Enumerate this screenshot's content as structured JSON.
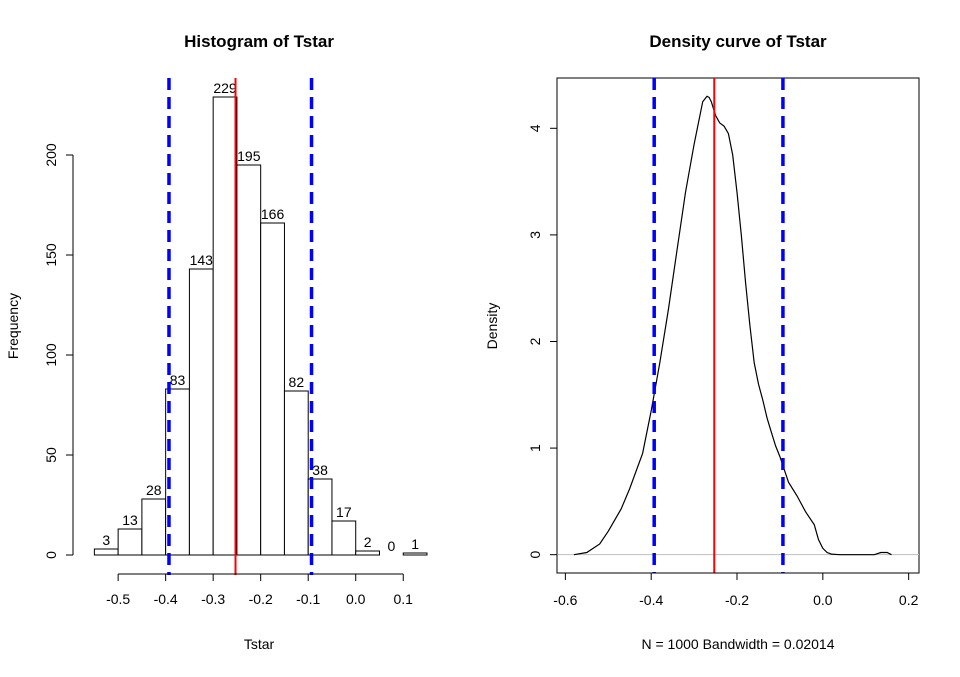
{
  "chart_data": [
    {
      "type": "bar",
      "title": "Histogram of Tstar",
      "xlabel": "Tstar",
      "ylabel": "Frequency",
      "bin_edges": [
        -0.55,
        -0.5,
        -0.45,
        -0.4,
        -0.35,
        -0.3,
        -0.25,
        -0.2,
        -0.15,
        -0.1,
        -0.05,
        0.0,
        0.05,
        0.1,
        0.15
      ],
      "values": [
        3,
        13,
        28,
        83,
        143,
        229,
        195,
        166,
        82,
        38,
        17,
        2,
        0,
        1
      ],
      "value_labels": [
        "3",
        "13",
        "28",
        "83",
        "143",
        "229",
        "195",
        "166",
        "82",
        "38",
        "17",
        "2",
        "0",
        "1"
      ],
      "xticks": [
        -0.5,
        -0.4,
        -0.3,
        -0.2,
        -0.1,
        0.0,
        0.1
      ],
      "xtick_labels": [
        "-0.5",
        "-0.4",
        "-0.3",
        "-0.2",
        "-0.1",
        "0.0",
        "0.1"
      ],
      "yticks": [
        0,
        50,
        100,
        150,
        200
      ],
      "ytick_labels": [
        "0",
        "50",
        "100",
        "150",
        "200"
      ],
      "xlim": [
        -0.555,
        0.15
      ],
      "ylim": [
        0,
        229
      ],
      "vlines": [
        {
          "x": -0.393,
          "color": "#0000ff",
          "style": "dashed"
        },
        {
          "x": -0.253,
          "color": "#ff0000",
          "style": "solid"
        },
        {
          "x": -0.093,
          "color": "#0000ff",
          "style": "dashed"
        }
      ],
      "colors": {
        "bar_fill": "#ffffff",
        "bar_stroke": "#000000"
      }
    },
    {
      "type": "line",
      "title": "Density curve of Tstar",
      "xlabel": "N = 1000   Bandwidth = 0.02014",
      "ylabel": "Density",
      "x": [
        -0.58,
        -0.55,
        -0.52,
        -0.5,
        -0.47,
        -0.45,
        -0.42,
        -0.4,
        -0.38,
        -0.36,
        -0.34,
        -0.32,
        -0.3,
        -0.29,
        -0.28,
        -0.27,
        -0.265,
        -0.26,
        -0.25,
        -0.24,
        -0.23,
        -0.22,
        -0.21,
        -0.2,
        -0.19,
        -0.18,
        -0.17,
        -0.16,
        -0.15,
        -0.14,
        -0.13,
        -0.12,
        -0.11,
        -0.1,
        -0.09,
        -0.08,
        -0.06,
        -0.04,
        -0.02,
        -0.01,
        0.0,
        0.01,
        0.02,
        0.04,
        0.06,
        0.08,
        0.1,
        0.12,
        0.135,
        0.15,
        0.16
      ],
      "y": [
        0.0,
        0.02,
        0.1,
        0.22,
        0.43,
        0.62,
        0.95,
        1.35,
        1.8,
        2.3,
        2.85,
        3.4,
        3.85,
        4.05,
        4.25,
        4.3,
        4.29,
        4.25,
        4.12,
        4.05,
        4.02,
        3.95,
        3.75,
        3.4,
        3.0,
        2.55,
        2.15,
        1.8,
        1.6,
        1.45,
        1.28,
        1.15,
        1.02,
        0.92,
        0.8,
        0.68,
        0.55,
        0.4,
        0.28,
        0.14,
        0.06,
        0.02,
        0.005,
        0.0,
        0.0,
        0.0,
        0.0,
        0.0,
        0.02,
        0.02,
        0.0
      ],
      "xticks": [
        -0.6,
        -0.4,
        -0.2,
        0.0,
        0.2
      ],
      "xtick_labels": [
        "-0.6",
        "-0.4",
        "-0.2",
        "0.0",
        "0.2"
      ],
      "yticks": [
        0,
        1,
        2,
        3,
        4
      ],
      "ytick_labels": [
        "0",
        "1",
        "2",
        "3",
        "4"
      ],
      "xlim": [
        -0.6195,
        0.2241
      ],
      "ylim": [
        -0.172,
        4.472
      ],
      "baseline": {
        "y": 0,
        "color": "#bebebe"
      },
      "vlines": [
        {
          "x": -0.393,
          "color": "#0000ff",
          "style": "dashed"
        },
        {
          "x": -0.253,
          "color": "#ff0000",
          "style": "solid"
        },
        {
          "x": -0.093,
          "color": "#0000ff",
          "style": "dashed"
        }
      ],
      "colors": {
        "curve": "#000000"
      }
    }
  ]
}
